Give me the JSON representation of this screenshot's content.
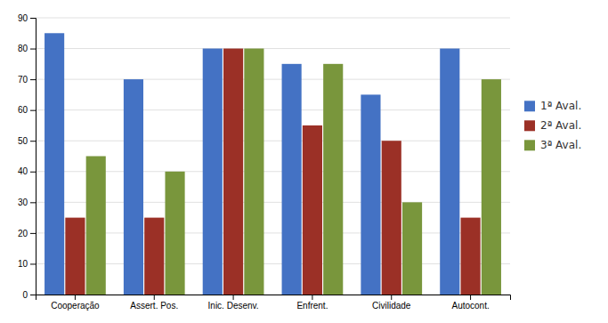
{
  "chart_data": {
    "type": "bar",
    "categories": [
      "Cooperação",
      "Assert. Pos.",
      "Inic. Desenv.",
      "Enfrent.",
      "Civilidade",
      "Autocont."
    ],
    "series": [
      {
        "name": "1ª Aval.",
        "color": "#4472C4",
        "values": [
          85,
          70,
          80,
          75,
          65,
          80
        ]
      },
      {
        "name": "2ª Aval.",
        "color": "#9B3026",
        "values": [
          25,
          25,
          80,
          55,
          50,
          25
        ]
      },
      {
        "name": "3ª Aval.",
        "color": "#79963C",
        "values": [
          45,
          40,
          80,
          75,
          30,
          70
        ]
      }
    ],
    "ylim": [
      0,
      90
    ],
    "yticks": [
      0,
      10,
      20,
      30,
      40,
      50,
      60,
      70,
      80,
      90
    ],
    "grid": true,
    "legend": "right"
  }
}
